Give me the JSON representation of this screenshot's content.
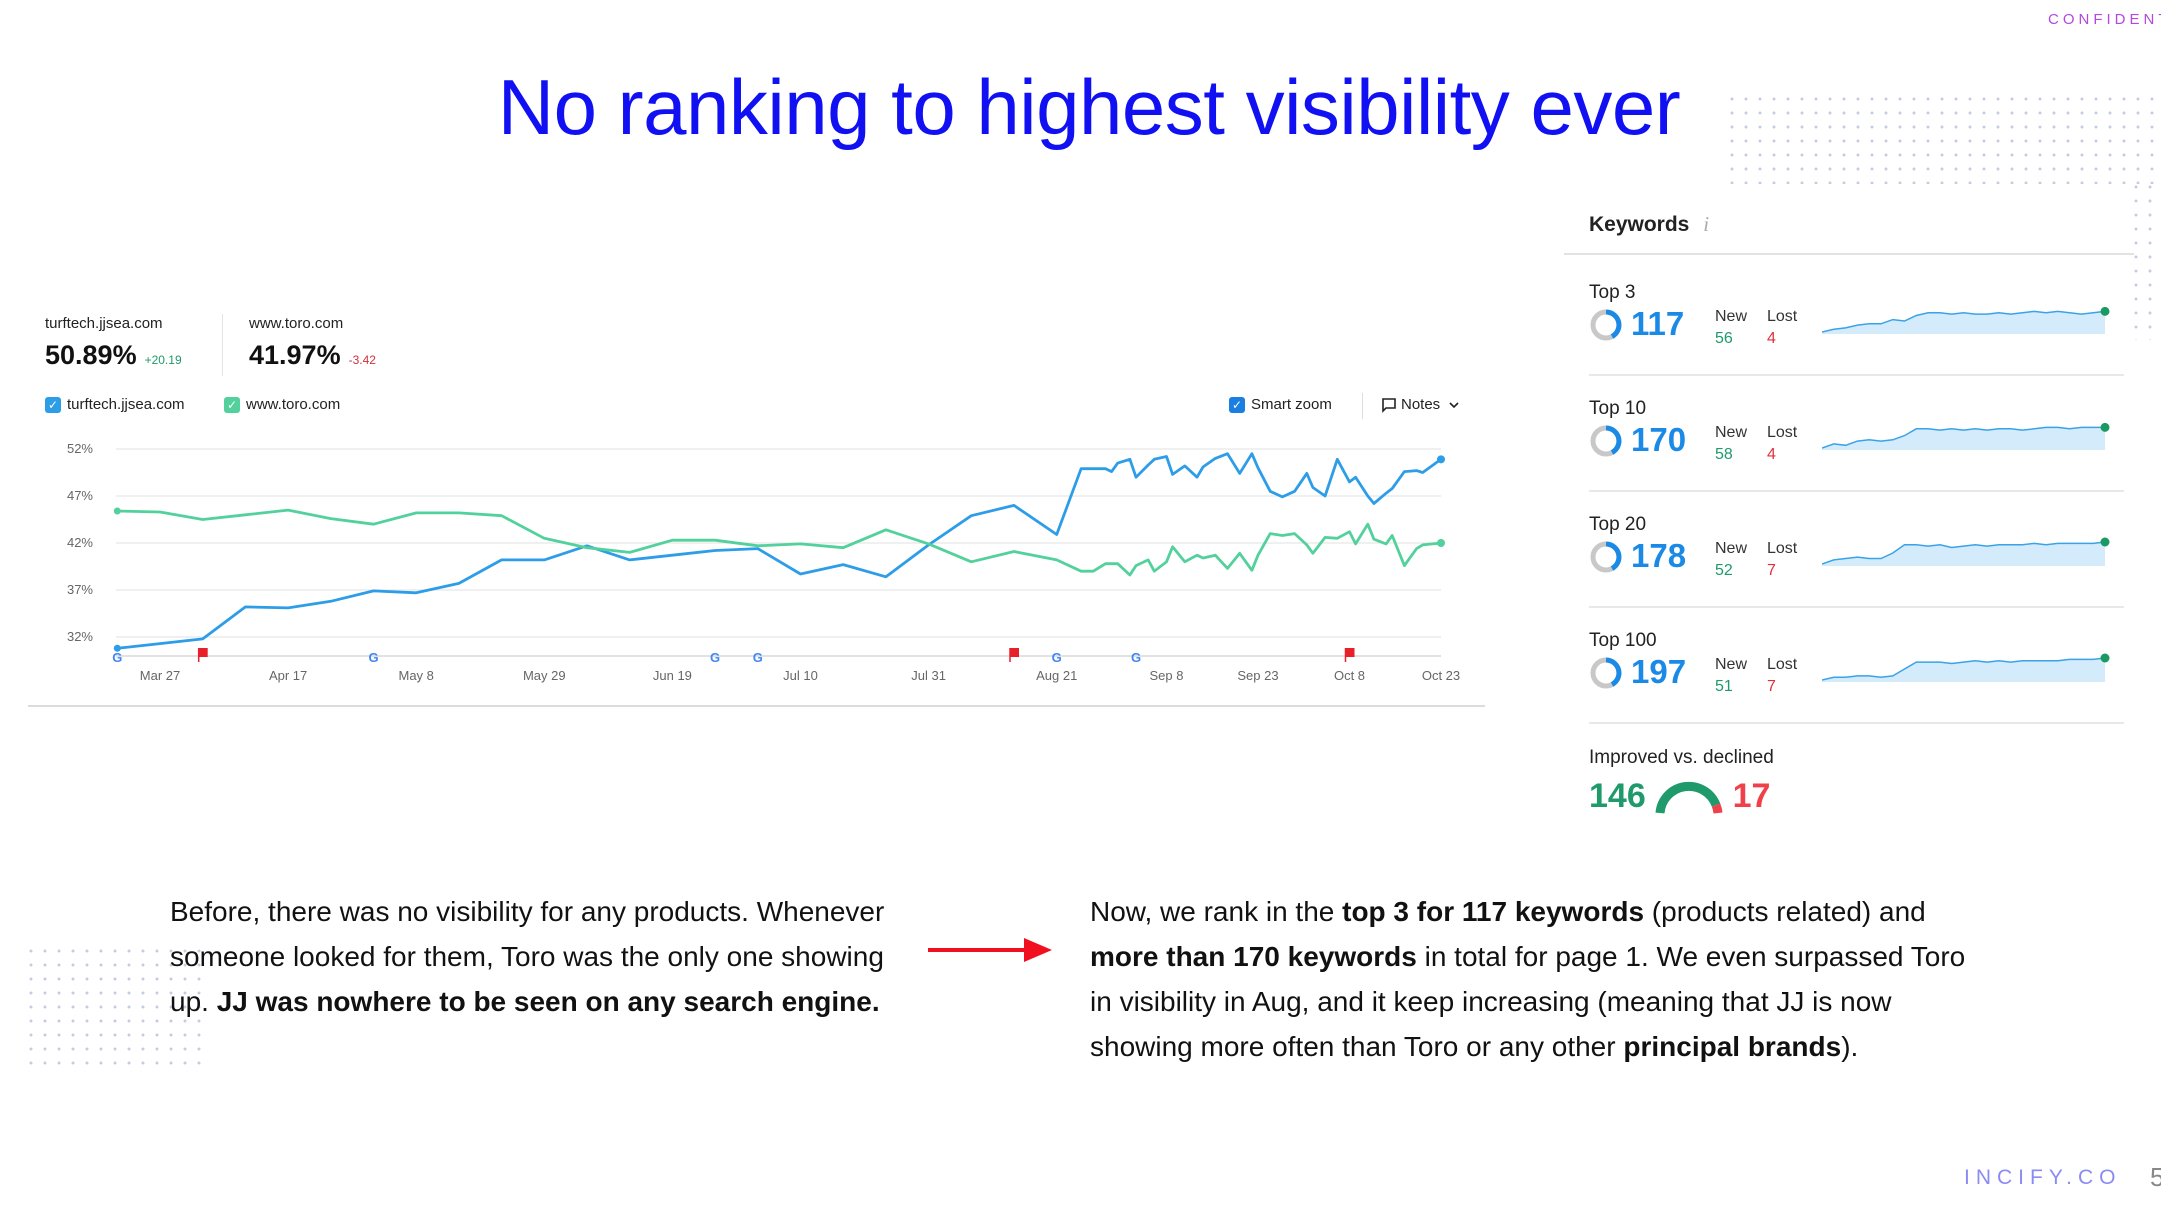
{
  "slide": {
    "title": "No ranking to highest visibility ever",
    "confidential": "CONFIDENTI",
    "brand": "INCIFY.CO",
    "page_number": "5",
    "title_color": "#1010f2"
  },
  "chart_panel": {
    "stats": [
      {
        "site": "turftech.jjsea.com",
        "value": "50.89%",
        "delta": "+20.19",
        "delta_color": "#1f9a6a"
      },
      {
        "site": "www.toro.com",
        "value": "41.97%",
        "delta": "-3.42",
        "delta_color": "#d0303a"
      }
    ],
    "legend": [
      {
        "label": "turftech.jjsea.com",
        "checked": true,
        "color": "#2d9de8"
      },
      {
        "label": "www.toro.com",
        "checked": true,
        "color": "#52d19c"
      }
    ],
    "smart_zoom": {
      "label": "Smart zoom",
      "checked": true
    },
    "notes": {
      "label": "Notes",
      "icon": "comment-icon"
    }
  },
  "chart_data": {
    "type": "line",
    "title": "",
    "xlabel": "",
    "ylabel": "",
    "ylim": [
      30,
      53
    ],
    "yticks": [
      52,
      47,
      42,
      37,
      32
    ],
    "ytick_labels": [
      "52%",
      "47%",
      "42%",
      "37%",
      "32%"
    ],
    "xtick_labels": [
      "Mar 27",
      "Apr 17",
      "May 8",
      "May 29",
      "Jun 19",
      "Jul 10",
      "Jul 31",
      "Aug 21",
      "Sep 8",
      "Sep 23",
      "Oct 8",
      "Oct 23"
    ],
    "grid": true,
    "series": [
      {
        "name": "turftech.jjsea.com",
        "color": "#2d9de8",
        "points": [
          [
            "Mar 20",
            30.8
          ],
          [
            "Mar 27",
            31.3
          ],
          [
            "Apr 3",
            31.8
          ],
          [
            "Apr 10",
            35.2
          ],
          [
            "Apr 17",
            35.1
          ],
          [
            "Apr 24",
            35.8
          ],
          [
            "May 1",
            36.9
          ],
          [
            "May 8",
            36.7
          ],
          [
            "May 15",
            37.7
          ],
          [
            "May 22",
            40.2
          ],
          [
            "May 29",
            40.2
          ],
          [
            "Jun 5",
            41.7
          ],
          [
            "Jun 12",
            40.2
          ],
          [
            "Jun 19",
            40.7
          ],
          [
            "Jun 26",
            41.2
          ],
          [
            "Jul 3",
            41.4
          ],
          [
            "Jul 10",
            38.7
          ],
          [
            "Jul 17",
            39.7
          ],
          [
            "Jul 24",
            38.4
          ],
          [
            "Jul 31",
            41.8
          ],
          [
            "Aug 7",
            44.9
          ],
          [
            "Aug 14",
            46.0
          ],
          [
            "Aug 21",
            42.9
          ],
          [
            "Aug 25",
            49.9
          ],
          [
            "Aug 27",
            49.9
          ],
          [
            "Aug 29",
            49.9
          ],
          [
            "Aug 30",
            49.6
          ],
          [
            "Aug 31",
            50.5
          ],
          [
            "Sep 2",
            50.9
          ],
          [
            "Sep 3",
            49.0
          ],
          [
            "Sep 5",
            50.3
          ],
          [
            "Sep 6",
            50.9
          ],
          [
            "Sep 8",
            51.2
          ],
          [
            "Sep 9",
            49.3
          ],
          [
            "Sep 11",
            50.2
          ],
          [
            "Sep 13",
            49.0
          ],
          [
            "Sep 14",
            50.1
          ],
          [
            "Sep 16",
            51.0
          ],
          [
            "Sep 18",
            51.5
          ],
          [
            "Sep 20",
            49.4
          ],
          [
            "Sep 22",
            51.5
          ],
          [
            "Sep 23",
            50.0
          ],
          [
            "Sep 25",
            47.5
          ],
          [
            "Sep 27",
            46.9
          ],
          [
            "Sep 29",
            47.5
          ],
          [
            "Oct 1",
            49.4
          ],
          [
            "Oct 2",
            47.9
          ],
          [
            "Oct 4",
            47.0
          ],
          [
            "Oct 6",
            50.9
          ],
          [
            "Oct 8",
            48.5
          ],
          [
            "Oct 9",
            49.0
          ],
          [
            "Oct 11",
            47.0
          ],
          [
            "Oct 12",
            46.2
          ],
          [
            "Oct 14",
            47.3
          ],
          [
            "Oct 15",
            47.8
          ],
          [
            "Oct 17",
            49.6
          ],
          [
            "Oct 19",
            49.7
          ],
          [
            "Oct 20",
            49.5
          ],
          [
            "Oct 23",
            50.9
          ]
        ]
      },
      {
        "name": "www.toro.com",
        "color": "#52d19c",
        "points": [
          [
            "Mar 20",
            45.4
          ],
          [
            "Mar 27",
            45.3
          ],
          [
            "Apr 3",
            44.5
          ],
          [
            "Apr 10",
            45.0
          ],
          [
            "Apr 17",
            45.5
          ],
          [
            "Apr 24",
            44.6
          ],
          [
            "May 1",
            44.0
          ],
          [
            "May 8",
            45.2
          ],
          [
            "May 15",
            45.2
          ],
          [
            "May 22",
            44.9
          ],
          [
            "May 29",
            42.5
          ],
          [
            "Jun 5",
            41.5
          ],
          [
            "Jun 12",
            41.0
          ],
          [
            "Jun 19",
            42.3
          ],
          [
            "Jun 26",
            42.3
          ],
          [
            "Jul 3",
            41.7
          ],
          [
            "Jul 10",
            41.9
          ],
          [
            "Jul 17",
            41.5
          ],
          [
            "Jul 24",
            43.4
          ],
          [
            "Jul 31",
            41.9
          ],
          [
            "Aug 7",
            40.0
          ],
          [
            "Aug 14",
            41.1
          ],
          [
            "Aug 21",
            40.2
          ],
          [
            "Aug 25",
            39.0
          ],
          [
            "Aug 27",
            39.0
          ],
          [
            "Aug 29",
            39.8
          ],
          [
            "Aug 31",
            39.8
          ],
          [
            "Sep 2",
            38.6
          ],
          [
            "Sep 3",
            39.6
          ],
          [
            "Sep 5",
            40.2
          ],
          [
            "Sep 6",
            39.0
          ],
          [
            "Sep 8",
            40.0
          ],
          [
            "Sep 9",
            41.6
          ],
          [
            "Sep 11",
            40.0
          ],
          [
            "Sep 13",
            40.7
          ],
          [
            "Sep 14",
            40.4
          ],
          [
            "Sep 16",
            40.7
          ],
          [
            "Sep 18",
            39.3
          ],
          [
            "Sep 20",
            40.9
          ],
          [
            "Sep 22",
            39.1
          ],
          [
            "Sep 23",
            40.7
          ],
          [
            "Sep 25",
            43.0
          ],
          [
            "Sep 27",
            42.8
          ],
          [
            "Sep 29",
            43.0
          ],
          [
            "Oct 1",
            41.8
          ],
          [
            "Oct 2",
            40.9
          ],
          [
            "Oct 4",
            42.6
          ],
          [
            "Oct 6",
            42.5
          ],
          [
            "Oct 8",
            43.2
          ],
          [
            "Oct 9",
            41.9
          ],
          [
            "Oct 11",
            44.0
          ],
          [
            "Oct 12",
            42.4
          ],
          [
            "Oct 14",
            41.9
          ],
          [
            "Oct 15",
            42.8
          ],
          [
            "Oct 17",
            39.6
          ],
          [
            "Oct 19",
            41.4
          ],
          [
            "Oct 20",
            41.8
          ],
          [
            "Oct 23",
            42.0
          ]
        ]
      }
    ],
    "events": {
      "google_updates": [
        "Mar 20",
        "May 1",
        "Jun 26",
        "Jul 3",
        "Aug 21",
        "Sep 3"
      ],
      "notes_flags": [
        "Apr 3",
        "Aug 14",
        "Oct 8"
      ]
    }
  },
  "keywords": {
    "title": "Keywords",
    "info_icon": "info-icon",
    "new_label": "New",
    "lost_label": "Lost",
    "rows": [
      {
        "label": "Top 3",
        "value": "117",
        "new": "56",
        "lost": "4",
        "trend": [
          0,
          2,
          3,
          5,
          6,
          6,
          9,
          8,
          12,
          14,
          14,
          13,
          14,
          13,
          13,
          14,
          13,
          14,
          15,
          14,
          15,
          14,
          13,
          14,
          15
        ]
      },
      {
        "label": "Top 10",
        "value": "170",
        "new": "58",
        "lost": "4",
        "trend": [
          0,
          3,
          2,
          5,
          6,
          5,
          6,
          9,
          14,
          14,
          13,
          14,
          13,
          14,
          13,
          14,
          14,
          13,
          14,
          15,
          15,
          14,
          15,
          15,
          15
        ]
      },
      {
        "label": "Top 20",
        "value": "178",
        "new": "52",
        "lost": "7",
        "trend": [
          0,
          3,
          4,
          5,
          4,
          4,
          8,
          14,
          14,
          13,
          14,
          12,
          13,
          14,
          13,
          14,
          14,
          14,
          15,
          14,
          15,
          15,
          15,
          15,
          16
        ]
      },
      {
        "label": "Top 100",
        "value": "197",
        "new": "51",
        "lost": "7",
        "trend": [
          0,
          2,
          2,
          3,
          3,
          2,
          3,
          8,
          13,
          13,
          13,
          12,
          13,
          14,
          13,
          14,
          13,
          14,
          14,
          14,
          14,
          15,
          15,
          15,
          16
        ]
      }
    ],
    "improved": {
      "label": "Improved vs. declined",
      "improved": "146",
      "declined": "17",
      "improved_color": "#1f9a6a",
      "declined_color": "#f0404a"
    }
  },
  "before": {
    "segments": [
      {
        "text": "Before, there was no visibility for any products. Whenever someone looked for them, Toro was the only one showing up. ",
        "bold": false
      },
      {
        "text": "JJ was nowhere to be seen on any search engine.",
        "bold": true
      }
    ]
  },
  "after": {
    "segments": [
      {
        "text": "Now, we rank in the ",
        "bold": false
      },
      {
        "text": "top 3 for 117 keywords",
        "bold": true
      },
      {
        "text": " (products related) and ",
        "bold": false
      },
      {
        "text": "more than 170 keywords",
        "bold": true
      },
      {
        "text": " in total for page 1. We even surpassed Toro in visibility in Aug, and it keep increasing (meaning that JJ is now showing more often than Toro or any other ",
        "bold": false
      },
      {
        "text": "principal brands",
        "bold": true
      },
      {
        "text": ").",
        "bold": false
      }
    ]
  }
}
